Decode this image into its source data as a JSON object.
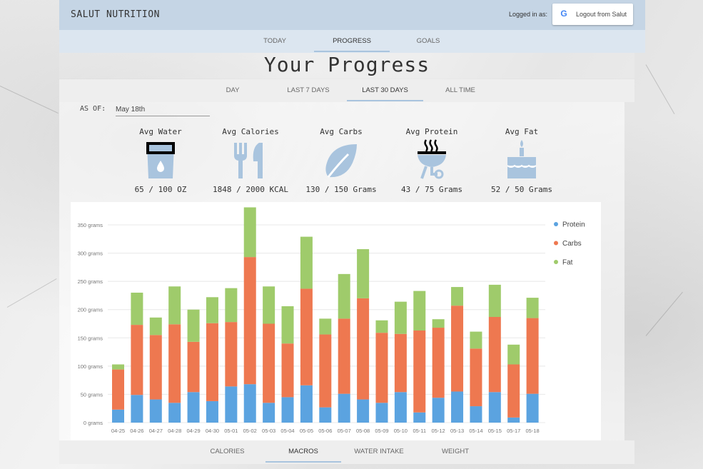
{
  "header": {
    "brand": "SALUT NUTRITION",
    "logged_in_label": "Logged in as:",
    "logout_label": "Logout from Salut"
  },
  "nav": {
    "tabs": [
      {
        "label": "TODAY",
        "active": false
      },
      {
        "label": "PROGRESS",
        "active": true
      },
      {
        "label": "GOALS",
        "active": false
      }
    ]
  },
  "page_title": "Your Progress",
  "range": {
    "tabs": [
      {
        "label": "DAY",
        "active": false
      },
      {
        "label": "LAST 7 DAYS",
        "active": false
      },
      {
        "label": "LAST 30 DAYS",
        "active": true
      },
      {
        "label": "ALL TIME",
        "active": false
      }
    ]
  },
  "as_of": {
    "label": "AS OF:",
    "value": "May 18th"
  },
  "stats": [
    {
      "label": "Avg Water",
      "value": "65 / 100 OZ",
      "icon": "water-glass-icon"
    },
    {
      "label": "Avg Calories",
      "value": "1848 / 2000 KCAL",
      "icon": "fork-knife-icon"
    },
    {
      "label": "Avg Carbs",
      "value": "130 / 150 Grams",
      "icon": "leaf-icon"
    },
    {
      "label": "Avg Protein",
      "value": "43 / 75 Grams",
      "icon": "grill-icon"
    },
    {
      "label": "Avg Fat",
      "value": "52 / 50 Grams",
      "icon": "cake-icon"
    }
  ],
  "colors": {
    "protein": "#5ba3e0",
    "carbs": "#ee7850",
    "fat": "#9fcb6b",
    "icon_blue": "#a9c4de",
    "grid": "#e8e8e8"
  },
  "chart_data": {
    "type": "bar",
    "stacked": true,
    "categories": [
      "04-25",
      "04-26",
      "04-27",
      "04-28",
      "04-29",
      "04-30",
      "05-01",
      "05-02",
      "05-03",
      "05-04",
      "05-05",
      "05-06",
      "05-07",
      "05-08",
      "05-09",
      "05-10",
      "05-11",
      "05-12",
      "05-13",
      "05-14",
      "05-15",
      "05-17",
      "05-18"
    ],
    "series": [
      {
        "name": "Protein",
        "values": [
          23,
          49,
          41,
          35,
          54,
          38,
          64,
          68,
          35,
          45,
          66,
          27,
          51,
          41,
          35,
          54,
          18,
          44,
          55,
          29,
          54,
          9,
          51
        ]
      },
      {
        "name": "Carbs",
        "values": [
          71,
          124,
          114,
          139,
          89,
          138,
          114,
          225,
          140,
          95,
          171,
          129,
          133,
          179,
          124,
          103,
          145,
          124,
          152,
          102,
          133,
          94,
          134
        ]
      },
      {
        "name": "Fat",
        "values": [
          9,
          57,
          31,
          67,
          57,
          46,
          60,
          88,
          66,
          66,
          92,
          28,
          79,
          87,
          22,
          57,
          70,
          15,
          33,
          30,
          57,
          35,
          36
        ]
      }
    ],
    "yticks": [
      "0 grams",
      "50 grams",
      "100 grams",
      "150 grams",
      "200 grams",
      "250 grams",
      "300 grams",
      "350 grams"
    ],
    "ylim": [
      0,
      380
    ],
    "grid": true,
    "legend": "right"
  },
  "bottom_tabs": [
    {
      "label": "CALORIES",
      "active": false
    },
    {
      "label": "MACROS",
      "active": true
    },
    {
      "label": "WATER INTAKE",
      "active": false
    },
    {
      "label": "WEIGHT",
      "active": false
    }
  ]
}
